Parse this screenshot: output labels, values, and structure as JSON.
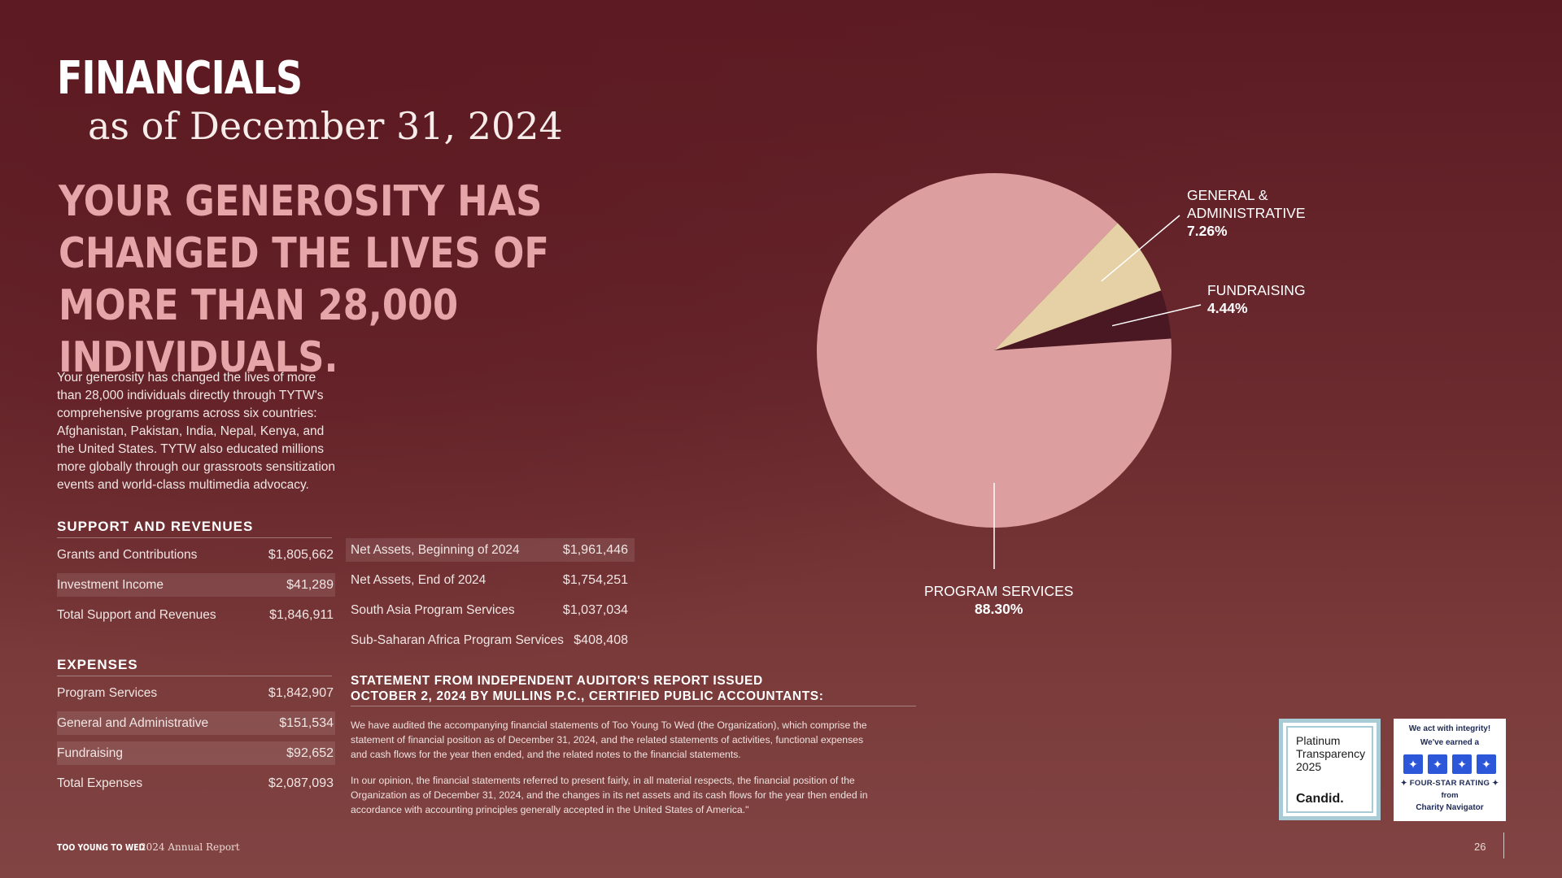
{
  "header": {
    "title": "FINANCIALS",
    "subtitle": "as of December 31, 2024"
  },
  "headline": "YOUR GENEROSITY HAS CHANGED THE LIVES OF MORE THAN 28,000 INDIVIDUALS.",
  "intro": "Your generosity has changed the lives of more than 28,000 individuals directly through TYTW's comprehensive programs across six countries: Afghanistan, Pakistan, India, Nepal, Kenya, and the United States. TYTW also educated millions more globally through our grassroots sensitization events and world-class multimedia advocacy.",
  "support": {
    "heading": "SUPPORT AND REVENUES",
    "rows": [
      {
        "label": "Grants and Contributions",
        "value": "$1,805,662"
      },
      {
        "label": "Investment Income",
        "value": "$41,289"
      },
      {
        "label": "Total Support and Revenues",
        "value": "$1,846,911"
      }
    ]
  },
  "expenses": {
    "heading": "EXPENSES",
    "rows": [
      {
        "label": "Program Services",
        "value": "$1,842,907"
      },
      {
        "label": "General and Administrative",
        "value": "$151,534"
      },
      {
        "label": "Fundraising",
        "value": "$92,652"
      },
      {
        "label": "Total Expenses",
        "value": "$2,087,093"
      }
    ]
  },
  "assets": {
    "rows": [
      {
        "label": "Net Assets, Beginning of 2024",
        "value": "$1,961,446"
      },
      {
        "label": "Net Assets, End of 2024",
        "value": "$1,754,251"
      },
      {
        "label": "South Asia Program Services",
        "value": "$1,037,034"
      },
      {
        "label": "Sub-Saharan Africa Program Services",
        "value": "$408,408"
      }
    ]
  },
  "auditor": {
    "heading_line1": "STATEMENT FROM INDEPENDENT AUDITOR'S REPORT ISSUED",
    "heading_line2": "OCTOBER 2, 2024 BY MULLINS P.C., CERTIFIED PUBLIC ACCOUNTANTS:",
    "para1": "We have audited the accompanying financial statements of Too Young To Wed (the Organization), which comprise the statement of financial position as of December 31, 2024, and the related statements of activities, functional expenses and cash flows for the year then ended, and the related notes to the financial statements.",
    "para2": "In our opinion, the financial statements referred to present fairly, in all material respects, the financial position of the Organization as of December 31, 2024, and the changes in its net assets and its cash flows for the year then ended in accordance with accounting principles generally accepted in the United States of America.\""
  },
  "chart_data": {
    "type": "pie",
    "slices": [
      {
        "label": "PROGRAM SERVICES",
        "value": 88.3,
        "value_label": "88.30%",
        "color": "#dd9ea0"
      },
      {
        "label": "GENERAL & ADMINISTRATIVE",
        "label_line1": "GENERAL &",
        "label_line2": "ADMINISTRATIVE",
        "value": 7.26,
        "value_label": "7.26%",
        "color": "#e6d0a6"
      },
      {
        "label": "FUNDRAISING",
        "value": 4.44,
        "value_label": "4.44%",
        "color": "#4a1822"
      }
    ]
  },
  "footer": {
    "brand": "TOO YOUNG TO WED",
    "report": "2024 Annual Report",
    "page": "26"
  },
  "badges": {
    "candid_text": "Platinum\nTransparency\n2025",
    "candid_logo": "Candid.",
    "cn_line1": "We act with integrity!",
    "cn_line2": "We've earned a",
    "cn_rating": "✦ FOUR-STAR RATING ✦",
    "cn_from": "from",
    "cn_name": "Charity Navigator",
    "star_glyph": "✦"
  },
  "colors": {
    "background": "#6a2a2e",
    "headline": "#e6a5a8",
    "badge_border": "#a9cbd6",
    "star_blue": "#2d57d9"
  }
}
